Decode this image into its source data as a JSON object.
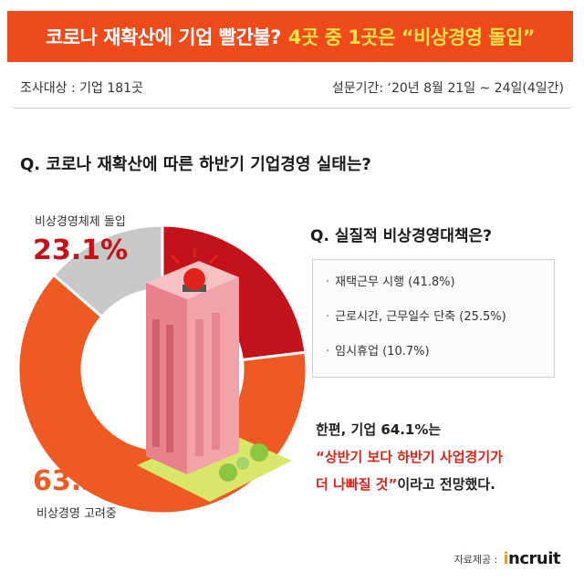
{
  "header": {
    "title": "코로나 재확산에 기업 빨간불?",
    "highlight": "4곳 중 1곳은 “비상경영 돌입”",
    "survey_target": "조사대상 : 기업 181곳",
    "survey_period": "설문기간: ‘20년 8월 21일 ~ 24일(4일간)"
  },
  "main": {
    "question1": "Q. 코로나 재확산에 따른 하반기 기업경영 실태는?",
    "question2": "Q. 실질적 비상경영대책은?",
    "label_emergency": "비상경영체제 돌입",
    "pct_emergency": "23.1%",
    "pct_considering": "63.3%",
    "label_considering": "비상경영 고려중",
    "measures": [
      "재택근무 시행 (41.8%)",
      "근로시간, 근무일수 단축 (25.5%)",
      "임시휴업 (10.7%)"
    ],
    "note_line1": "한편, 기업 64.1%는",
    "note_line2": "“상반기 보다 하반기 사업경기가",
    "note_line3_red": "더 나빠질 것”",
    "note_line3_rest": "이라고 전망했다."
  },
  "footer": {
    "source_label": "자료제공 :",
    "logo_mark": "i",
    "logo_text": "ncruit"
  },
  "colors": {
    "banner": "#ef4a1a",
    "emergency": "#c4121b",
    "considering": "#ee5a22",
    "other": "#c8c8c8"
  },
  "chart_data": {
    "type": "pie",
    "categories": [
      "비상경영체제 돌입",
      "비상경영 고려중",
      "other"
    ],
    "values": [
      23.1,
      63.3,
      13.6
    ],
    "colors": [
      "#c4121b",
      "#ee5a22",
      "#c8c8c8"
    ],
    "start_angle_deg": 0,
    "donut": true
  }
}
